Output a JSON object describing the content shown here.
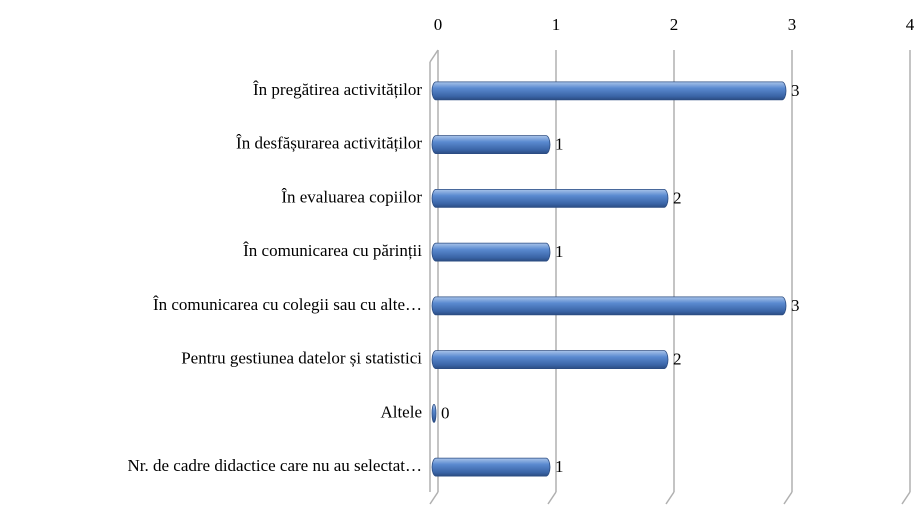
{
  "chart_data": {
    "type": "bar",
    "orientation": "horizontal",
    "categories": [
      "În pregătirea activităților",
      "În desfășurarea activităților",
      "În evaluarea copiilor",
      "În comunicarea cu părinții",
      "În comunicarea cu colegii sau cu alte…",
      "Pentru gestiunea datelor și statistici",
      "Altele",
      "Nr.  de cadre didactice care nu au selectat…"
    ],
    "values": [
      3,
      1,
      2,
      1,
      3,
      2,
      0,
      1
    ],
    "color": "#4f81bd",
    "xlim": [
      0,
      4
    ],
    "xticks": [
      0,
      1,
      2,
      3,
      4
    ],
    "grid": true
  }
}
